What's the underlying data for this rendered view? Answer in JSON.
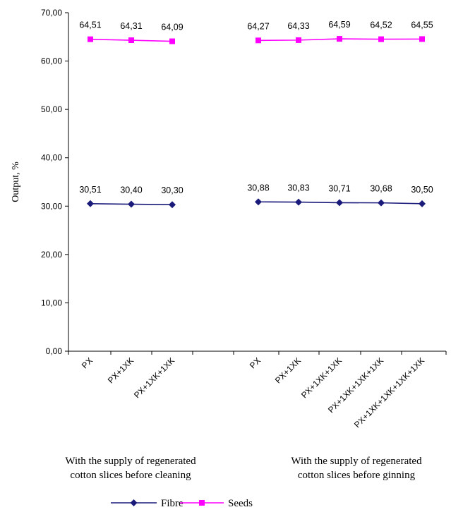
{
  "chart_data": {
    "type": "line",
    "ylabel": "Output, %",
    "ylim": [
      0,
      70
    ],
    "y_ticks": [
      "0,00",
      "10,00",
      "20,00",
      "30,00",
      "40,00",
      "50,00",
      "60,00",
      "70,00"
    ],
    "grid": false,
    "legend_position": "bottom",
    "groups": [
      {
        "label": "With the supply of regenerated cotton slices before cleaning",
        "label_lines": [
          "With the supply of regenerated",
          "cotton slices before cleaning"
        ],
        "categories": [
          "PX",
          "PX+1XK",
          "PX+1XK+1XK"
        ],
        "series": [
          {
            "name": "Fibre",
            "values": [
              30.51,
              30.4,
              30.3
            ],
            "labels": [
              "30,51",
              "30,40",
              "30,30"
            ]
          },
          {
            "name": "Seeds",
            "values": [
              64.51,
              64.31,
              64.09
            ],
            "labels": [
              "64,51",
              "64,31",
              "64,09"
            ]
          }
        ]
      },
      {
        "label": "With the supply of regenerated cotton slices before ginning",
        "label_lines": [
          "With the supply of regenerated",
          "cotton slices before ginning"
        ],
        "categories": [
          "PX",
          "PX+1XK",
          "PX+1XK+1XK",
          "PX+1XK+1XK+1XK",
          "PX+1XK+1XK+1XK+1XK"
        ],
        "series": [
          {
            "name": "Fibre",
            "values": [
              30.88,
              30.83,
              30.71,
              30.68,
              30.5
            ],
            "labels": [
              "30,88",
              "30,83",
              "30,71",
              "30,68",
              "30,50"
            ]
          },
          {
            "name": "Seeds",
            "values": [
              64.27,
              64.33,
              64.59,
              64.52,
              64.55
            ],
            "labels": [
              "64,27",
              "64,33",
              "64,59",
              "64,52",
              "64,55"
            ]
          }
        ]
      }
    ],
    "legend": [
      {
        "name": "Fibre",
        "color": "#1a1a7a",
        "marker": "diamond"
      },
      {
        "name": "Seeds",
        "color": "#ff00ff",
        "marker": "square"
      }
    ]
  }
}
